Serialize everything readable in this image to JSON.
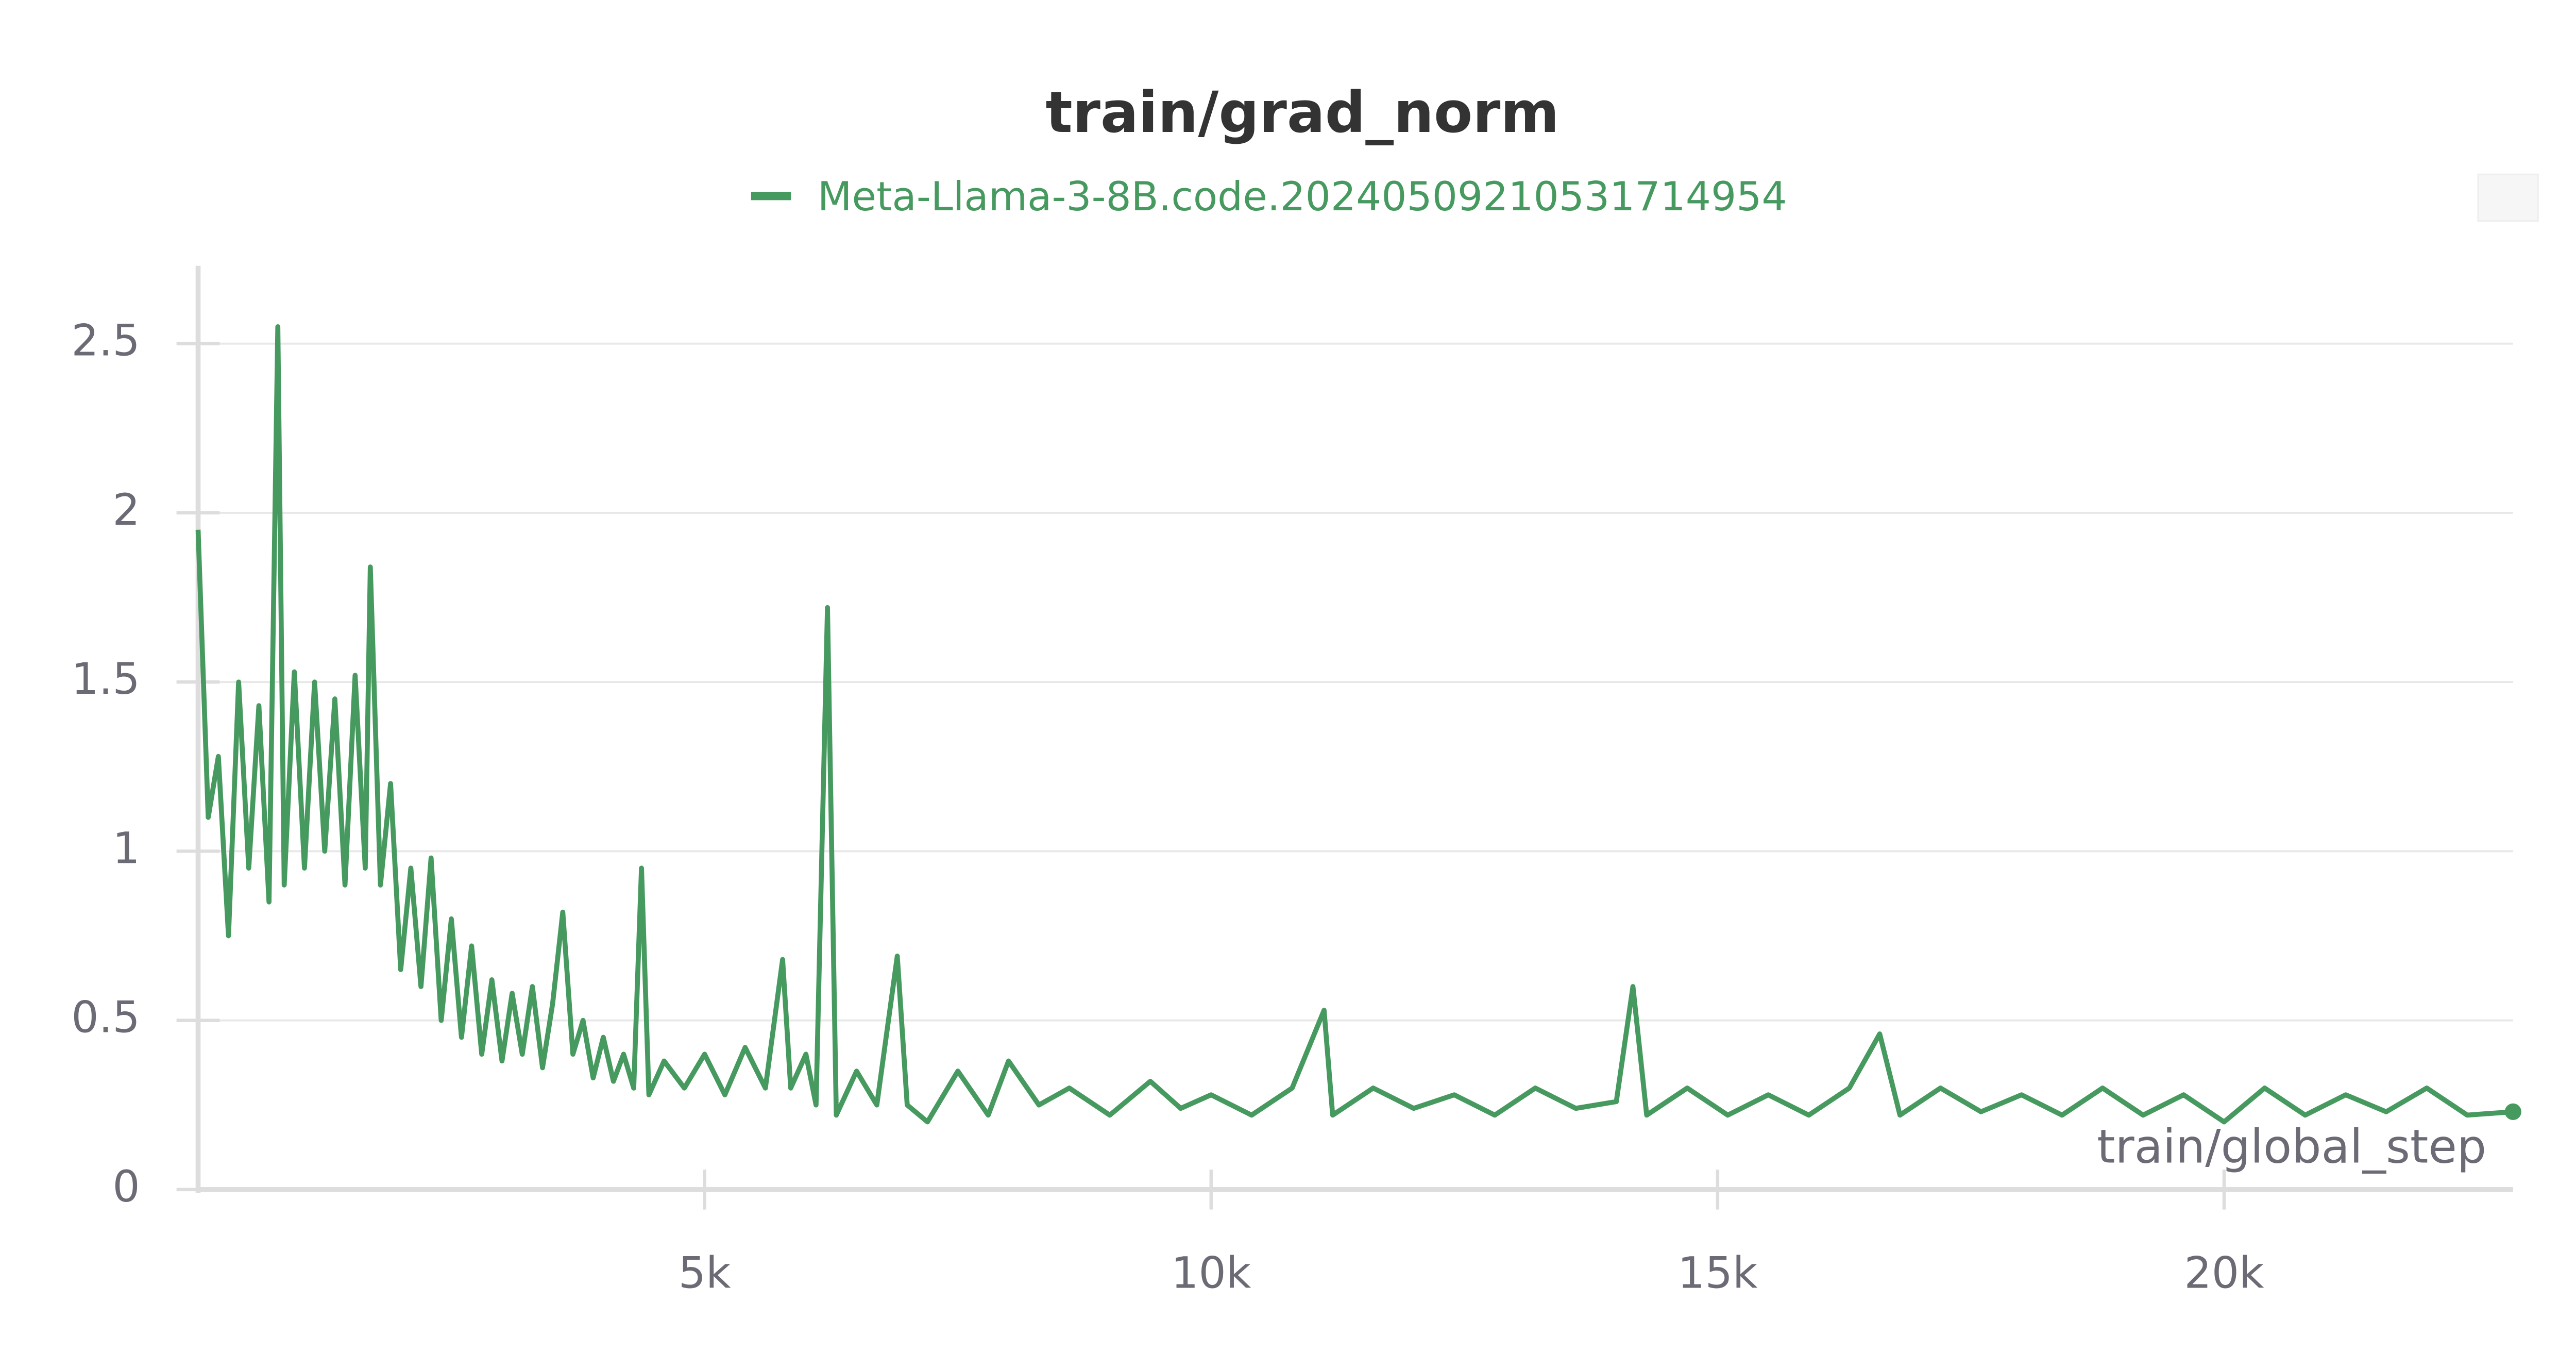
{
  "chart_data": {
    "type": "line",
    "title": "train/grad_norm",
    "x_label": "train/global_step",
    "x": [
      0,
      100,
      200,
      300,
      400,
      500,
      600,
      700,
      787,
      850,
      950,
      1050,
      1150,
      1250,
      1350,
      1450,
      1550,
      1650,
      1700,
      1800,
      1900,
      2000,
      2100,
      2200,
      2300,
      2400,
      2500,
      2600,
      2700,
      2800,
      2900,
      3000,
      3100,
      3200,
      3300,
      3400,
      3500,
      3600,
      3700,
      3800,
      3900,
      4000,
      4100,
      4200,
      4300,
      4377,
      4450,
      4600,
      4800,
      5000,
      5200,
      5400,
      5600,
      5770,
      5850,
      6000,
      6100,
      6213,
      6300,
      6500,
      6700,
      6902,
      7000,
      7200,
      7500,
      7800,
      8000,
      8300,
      8600,
      9000,
      9400,
      9700,
      10000,
      10400,
      10800,
      11115,
      11200,
      11600,
      12000,
      12400,
      12800,
      13200,
      13600,
      14000,
      14164,
      14300,
      14700,
      15100,
      15500,
      15900,
      16300,
      16600,
      16800,
      17200,
      17600,
      18000,
      18400,
      18800,
      19200,
      19600,
      20000,
      20400,
      20800,
      21200,
      21600,
      22000,
      22400,
      22852
    ],
    "series": [
      {
        "name": "Meta-Llama-3-8B.code.20240509210531714954",
        "color": "#479a5f",
        "values": [
          1.95,
          1.1,
          1.28,
          0.75,
          1.5,
          0.95,
          1.43,
          0.85,
          2.55,
          0.9,
          1.53,
          0.95,
          1.5,
          1.0,
          1.45,
          0.9,
          1.52,
          0.95,
          1.84,
          0.9,
          1.2,
          0.65,
          0.95,
          0.6,
          0.98,
          0.5,
          0.8,
          0.45,
          0.72,
          0.4,
          0.62,
          0.38,
          0.58,
          0.4,
          0.6,
          0.36,
          0.55,
          0.82,
          0.4,
          0.5,
          0.33,
          0.45,
          0.32,
          0.4,
          0.3,
          0.95,
          0.28,
          0.38,
          0.3,
          0.4,
          0.28,
          0.42,
          0.3,
          0.68,
          0.3,
          0.4,
          0.25,
          1.72,
          0.22,
          0.35,
          0.25,
          0.69,
          0.25,
          0.2,
          0.35,
          0.22,
          0.38,
          0.25,
          0.3,
          0.22,
          0.32,
          0.24,
          0.28,
          0.22,
          0.3,
          0.53,
          0.22,
          0.3,
          0.24,
          0.28,
          0.22,
          0.3,
          0.24,
          0.26,
          0.6,
          0.22,
          0.3,
          0.22,
          0.28,
          0.22,
          0.3,
          0.46,
          0.22,
          0.3,
          0.23,
          0.28,
          0.22,
          0.3,
          0.22,
          0.28,
          0.2,
          0.3,
          0.22,
          0.28,
          0.23,
          0.3,
          0.22,
          0.23
        ]
      }
    ],
    "xlim": [
      0,
      22852
    ],
    "xticks": [
      {
        "value": 5000,
        "label": "5k"
      },
      {
        "value": 10000,
        "label": "10k"
      },
      {
        "value": 15000,
        "label": "15k"
      },
      {
        "value": 20000,
        "label": "20k"
      }
    ],
    "ylim": [
      0,
      2.73
    ],
    "yticks": [
      0,
      0.5,
      1,
      1.5,
      2,
      2.5
    ],
    "grid": true
  }
}
